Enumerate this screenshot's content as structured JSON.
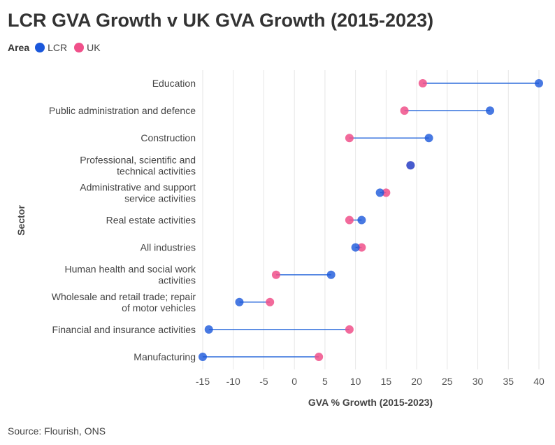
{
  "chart_data": {
    "type": "dumbbell",
    "title": "LCR GVA Growth v UK GVA Growth (2015-2023)",
    "legend_title": "Area",
    "series": [
      {
        "name": "LCR",
        "color": "#1a57db"
      },
      {
        "name": "UK",
        "color": "#f0508a"
      }
    ],
    "xlabel": "GVA % Growth (2015-2023)",
    "ylabel": "Sector",
    "xlim": [
      -15,
      40
    ],
    "xticks": [
      -15,
      -10,
      -5,
      0,
      5,
      10,
      15,
      20,
      25,
      30,
      35,
      40
    ],
    "categories": [
      {
        "label": [
          "Education"
        ],
        "LCR": 40,
        "UK": 21
      },
      {
        "label": [
          "Public administration and defence"
        ],
        "LCR": 32,
        "UK": 18
      },
      {
        "label": [
          "Construction"
        ],
        "LCR": 22,
        "UK": 9
      },
      {
        "label": [
          "Professional, scientific and",
          "technical activities"
        ],
        "LCR": 19,
        "UK": 19
      },
      {
        "label": [
          "Administrative and support",
          "service activities"
        ],
        "LCR": 14,
        "UK": 15
      },
      {
        "label": [
          "Real estate activities"
        ],
        "LCR": 11,
        "UK": 9
      },
      {
        "label": [
          "All industries"
        ],
        "LCR": 10,
        "UK": 11
      },
      {
        "label": [
          "Human health and social work",
          "activities"
        ],
        "LCR": 6,
        "UK": -3
      },
      {
        "label": [
          "Wholesale and retail trade; repair",
          "of motor vehicles"
        ],
        "LCR": -9,
        "UK": -4
      },
      {
        "label": [
          "Financial and insurance activities"
        ],
        "LCR": -14,
        "UK": 9
      },
      {
        "label": [
          "Manufacturing"
        ],
        "LCR": -15,
        "UK": 4
      }
    ]
  },
  "source": "Source: Flourish, ONS"
}
